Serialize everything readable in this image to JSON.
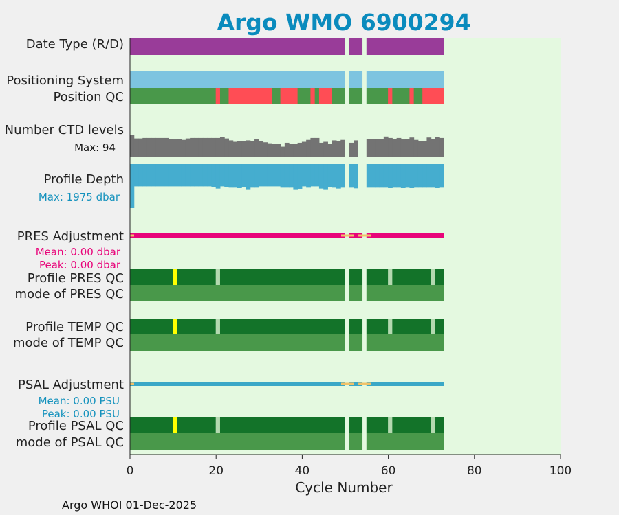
{
  "chart_data": {
    "type": "bar",
    "title": "Argo WMO 6900294",
    "xlabel": "Cycle Number",
    "footer": "Argo WHOI 01-Dec-2025",
    "xlim": [
      0,
      100
    ],
    "xticks": [
      0,
      20,
      40,
      60,
      80,
      100
    ],
    "missing_cycles": [
      50,
      54
    ],
    "last_cycle": 72,
    "rows": {
      "date_type": "Date Type (R/D)",
      "positioning": "Positioning System",
      "position_qc": "Position QC",
      "ctd_levels": "Number CTD levels",
      "ctd_max": "Max: 94",
      "profile_depth": "Profile Depth",
      "depth_max": "Max: 1975 dbar",
      "pres_adj": "PRES Adjustment",
      "pres_mean": "Mean: 0.00 dbar",
      "pres_peak": "Peak: 0.00 dbar",
      "profile_pres_qc": "Profile PRES QC",
      "mode_pres_qc": "mode of PRES QC",
      "profile_temp_qc": "Profile TEMP QC",
      "mode_temp_qc": "mode of TEMP QC",
      "psal_adj": "PSAL Adjustment",
      "psal_mean": "Mean: 0.00 PSU",
      "psal_peak": "Peak: 0.00 PSU",
      "profile_psal_qc": "Profile PSAL QC",
      "mode_psal_qc": "mode of PSAL QC"
    },
    "position_qc_bad_cycles": [
      20,
      23,
      24,
      25,
      26,
      27,
      28,
      29,
      30,
      31,
      32,
      35,
      36,
      37,
      38,
      42,
      44,
      45,
      46,
      60,
      65,
      68,
      69,
      70,
      71,
      72
    ],
    "profile_qc_flag_cycles": {
      "yellow": [
        10
      ],
      "pale": [
        20,
        60,
        70
      ]
    },
    "ctd_levels": [
      94,
      78,
      78,
      80,
      80,
      80,
      80,
      80,
      80,
      76,
      74,
      76,
      72,
      78,
      80,
      80,
      80,
      80,
      80,
      80,
      80,
      84,
      78,
      70,
      64,
      66,
      68,
      70,
      66,
      74,
      66,
      62,
      58,
      56,
      56,
      44,
      60,
      56,
      56,
      60,
      64,
      72,
      80,
      80,
      60,
      64,
      56,
      70,
      66,
      72,
      0,
      60,
      70,
      0,
      0,
      76,
      76,
      76,
      76,
      86,
      80,
      76,
      80,
      74,
      76,
      82,
      72,
      68,
      66,
      82,
      76,
      84,
      80
    ],
    "profile_depth": [
      1975,
      1000,
      1000,
      1000,
      1000,
      1000,
      1000,
      1000,
      1000,
      1000,
      1000,
      1000,
      1000,
      1000,
      1000,
      1000,
      1000,
      1000,
      1000,
      1030,
      1100,
      1000,
      1020,
      1060,
      1060,
      1080,
      1050,
      1130,
      1060,
      1060,
      1000,
      1000,
      1000,
      1000,
      1000,
      1060,
      1060,
      1060,
      1130,
      1110,
      1000,
      1060,
      1000,
      1000,
      1100,
      1130,
      1050,
      1060,
      1100,
      1060,
      0,
      1060,
      1090,
      0,
      0,
      1060,
      1060,
      1060,
      1060,
      1060,
      1080,
      1060,
      1060,
      1080,
      1060,
      1080,
      1060,
      1060,
      1060,
      1060,
      1060,
      1080,
      1060
    ],
    "colors": {
      "plot_bg": "#e4f9e0",
      "date_type": "#993c99",
      "positioning": "#7dc4e0",
      "qc_good": "#49984a",
      "qc_dark": "#137329",
      "qc_bad": "#ff4d55",
      "qc_yellow": "#ffff00",
      "qc_pale": "#b4d9b0",
      "ctd": "#737373",
      "depth": "#45adcf",
      "pres": "#e8057a",
      "psal": "#3aa8c7",
      "adj_gap": "#f0c26a",
      "title": "#0a8bbd"
    }
  }
}
